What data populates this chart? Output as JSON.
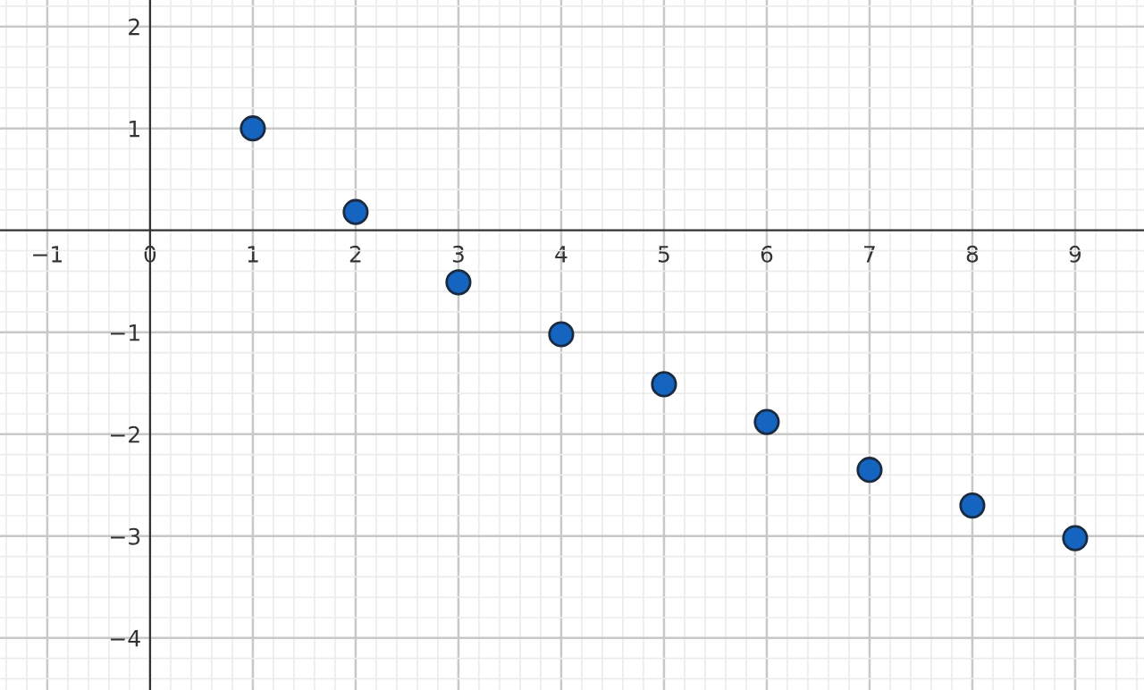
{
  "chart_data": {
    "type": "scatter",
    "x": [
      1,
      2,
      3,
      4,
      5,
      6,
      7,
      8,
      9
    ],
    "series": [
      {
        "color": "#1565c0",
        "values": [
          1,
          0.18,
          -0.51,
          -1.02,
          -1.51,
          -1.88,
          -2.35,
          -2.7,
          -3.02
        ]
      }
    ],
    "xlim": [
      -1.46,
      9.67
    ],
    "ylim": [
      -4.51,
      2.26
    ],
    "xticks": [
      {
        "value": -1,
        "label": "−1"
      },
      0,
      1,
      2,
      3,
      4,
      5,
      6,
      7,
      8,
      9
    ],
    "yticks": [
      {
        "value": -4,
        "label": "−4"
      },
      {
        "value": -3,
        "label": "−3"
      },
      {
        "value": -2,
        "label": "−2"
      },
      {
        "value": -1,
        "label": "−1"
      },
      1,
      2
    ],
    "grid": true,
    "marker": "circle"
  }
}
